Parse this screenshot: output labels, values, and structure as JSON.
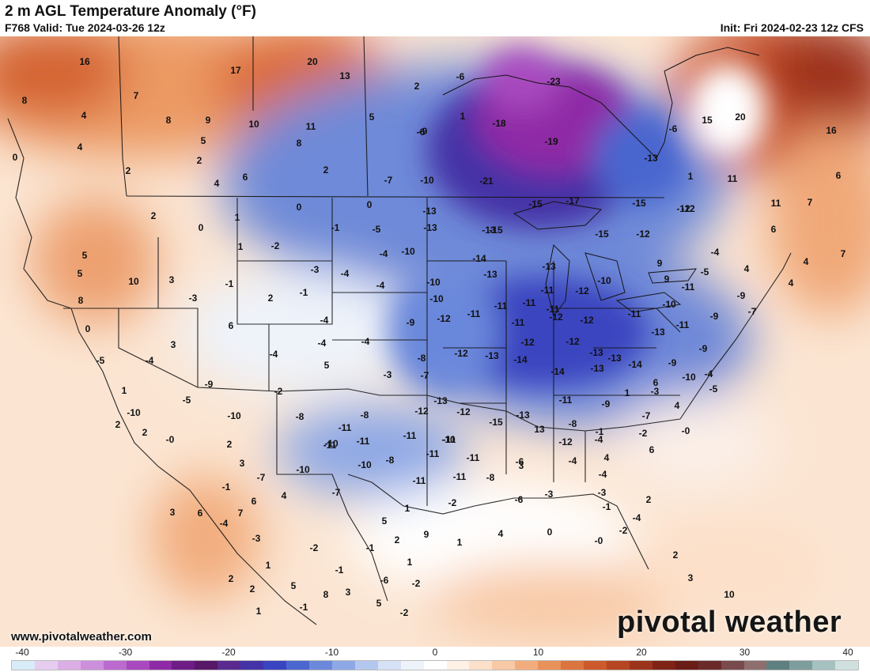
{
  "header": {
    "title": "2 m AGL Temperature Anomaly (°F)",
    "valid": "F768 Valid: Tue 2024-03-26 12z",
    "init": "Init: Fri 2024-02-23 12z CFS"
  },
  "footer": {
    "website": "www.pivotalweather.com",
    "brand": "pivotal weather"
  },
  "colorbar": {
    "min": -40,
    "max": 40,
    "ticks": [
      "-40",
      "-30",
      "-20",
      "-10",
      "0",
      "10",
      "20",
      "30",
      "40"
    ],
    "colors": [
      "#d8ecf8",
      "#e6cdf0",
      "#dcaee6",
      "#cc8fdc",
      "#bb6ad0",
      "#a948bf",
      "#8f2aa6",
      "#6e1c86",
      "#571869",
      "#5a2a8f",
      "#4433a6",
      "#3a44c0",
      "#4a66cf",
      "#6b88db",
      "#8ea8e5",
      "#b4c8ef",
      "#d6e1f6",
      "#eef3fa",
      "#ffffff",
      "#fff1e6",
      "#fde0c9",
      "#f8c9a6",
      "#f2ad7e",
      "#e9915a",
      "#dc7440",
      "#cc5a2c",
      "#b64522",
      "#9c331c",
      "#7f2317",
      "#6a1c17",
      "#6b2a2a",
      "#7a4b4e",
      "#8e6f6e",
      "#5f7f80",
      "#7e9e9d",
      "#a5c1c0",
      "#cfe0df"
    ]
  },
  "map_values": [
    {
      "v": "16"
    },
    {
      "v": "17"
    },
    {
      "v": "20"
    },
    {
      "v": "13"
    },
    {
      "v": "8"
    },
    {
      "v": "7"
    },
    {
      "v": "4"
    },
    {
      "v": "8"
    },
    {
      "v": "9"
    },
    {
      "v": "10"
    },
    {
      "v": "11"
    },
    {
      "v": "4"
    },
    {
      "v": "5"
    },
    {
      "v": "8"
    },
    {
      "v": "0"
    },
    {
      "v": "2"
    },
    {
      "v": "2"
    },
    {
      "v": "2"
    },
    {
      "v": "4"
    },
    {
      "v": "6"
    },
    {
      "v": "2"
    },
    {
      "v": "-6"
    },
    {
      "v": "1"
    },
    {
      "v": "5"
    },
    {
      "v": "-9"
    },
    {
      "v": "-6"
    },
    {
      "v": "-18"
    },
    {
      "v": "-19"
    },
    {
      "v": "-23"
    },
    {
      "v": "-7"
    },
    {
      "v": "-10"
    },
    {
      "v": "-21"
    },
    {
      "v": "-13"
    },
    {
      "v": "-17"
    },
    {
      "v": "-15"
    },
    {
      "v": "-15"
    },
    {
      "v": "-12"
    },
    {
      "v": "-6"
    },
    {
      "v": "-13"
    },
    {
      "v": "-15"
    },
    {
      "v": "1"
    },
    {
      "v": "11"
    },
    {
      "v": "15"
    },
    {
      "v": "20"
    },
    {
      "v": "16"
    },
    {
      "v": "11"
    },
    {
      "v": "7"
    },
    {
      "v": "6"
    },
    {
      "v": "6"
    },
    {
      "v": "4"
    },
    {
      "v": "4"
    },
    {
      "v": "7"
    },
    {
      "v": "4"
    },
    {
      "v": "-4"
    },
    {
      "v": "0"
    },
    {
      "v": "2"
    },
    {
      "v": "0"
    },
    {
      "v": "1"
    },
    {
      "v": "1"
    },
    {
      "v": "-2"
    },
    {
      "v": "0"
    },
    {
      "v": "-1"
    },
    {
      "v": "-5"
    },
    {
      "v": "-4"
    },
    {
      "v": "-13"
    },
    {
      "v": "-13"
    },
    {
      "v": "-15"
    },
    {
      "v": "-12"
    },
    {
      "v": "-12"
    },
    {
      "v": "9"
    },
    {
      "v": "5"
    },
    {
      "v": "5"
    },
    {
      "v": "10"
    },
    {
      "v": "3"
    },
    {
      "v": "-3"
    },
    {
      "v": "-1"
    },
    {
      "v": "2"
    },
    {
      "v": "-1"
    },
    {
      "v": "-3"
    },
    {
      "v": "-4"
    },
    {
      "v": "-10"
    },
    {
      "v": "-4"
    },
    {
      "v": "-10"
    },
    {
      "v": "-14"
    },
    {
      "v": "-13"
    },
    {
      "v": "-13"
    },
    {
      "v": "-11"
    },
    {
      "v": "-11"
    },
    {
      "v": "-12"
    },
    {
      "v": "-10"
    },
    {
      "v": "9"
    },
    {
      "v": "-11"
    },
    {
      "v": "-10"
    },
    {
      "v": "-5"
    },
    {
      "v": "-9"
    },
    {
      "v": "8"
    },
    {
      "v": "0"
    },
    {
      "v": "6"
    },
    {
      "v": "3"
    },
    {
      "v": "-4"
    },
    {
      "v": "-4"
    },
    {
      "v": "-4"
    },
    {
      "v": "-9"
    },
    {
      "v": "-10"
    },
    {
      "v": "-12"
    },
    {
      "v": "-11"
    },
    {
      "v": "-11"
    },
    {
      "v": "-11"
    },
    {
      "v": "-11"
    },
    {
      "v": "-12"
    },
    {
      "v": "-12"
    },
    {
      "v": "-11"
    },
    {
      "v": "-11"
    },
    {
      "v": "-13"
    },
    {
      "v": "-9"
    },
    {
      "v": "-7"
    },
    {
      "v": "-4"
    },
    {
      "v": "-1"
    },
    {
      "v": "3"
    },
    {
      "v": "-5"
    },
    {
      "v": "5"
    },
    {
      "v": "-4"
    },
    {
      "v": "-3"
    },
    {
      "v": "-8"
    },
    {
      "v": "-7"
    },
    {
      "v": "-12"
    },
    {
      "v": "-13"
    },
    {
      "v": "-14"
    },
    {
      "v": "-12"
    },
    {
      "v": "-12"
    },
    {
      "v": "-14"
    },
    {
      "v": "-13"
    },
    {
      "v": "-13"
    },
    {
      "v": "-14"
    },
    {
      "v": "-13"
    },
    {
      "v": "-9"
    },
    {
      "v": "-9"
    },
    {
      "v": "-10"
    },
    {
      "v": "-4"
    },
    {
      "v": "-3"
    },
    {
      "v": "1"
    },
    {
      "v": "-9"
    },
    {
      "v": "-5"
    },
    {
      "v": "-2"
    },
    {
      "v": "-8"
    },
    {
      "v": "-8"
    },
    {
      "v": "-11"
    },
    {
      "v": "-12"
    },
    {
      "v": "-13"
    },
    {
      "v": "-12"
    },
    {
      "v": "-15"
    },
    {
      "v": "-13"
    },
    {
      "v": "-11"
    },
    {
      "v": "-9"
    },
    {
      "v": "6"
    },
    {
      "v": "1"
    },
    {
      "v": "4"
    },
    {
      "v": "-5"
    },
    {
      "v": "-10"
    },
    {
      "v": "-10"
    },
    {
      "v": "-10"
    },
    {
      "v": "-11"
    },
    {
      "v": "-11"
    },
    {
      "v": "-10"
    },
    {
      "v": "-11"
    },
    {
      "v": "-11"
    },
    {
      "v": "-11"
    },
    {
      "v": "13"
    },
    {
      "v": "-8"
    },
    {
      "v": "-7"
    },
    {
      "v": "-2"
    },
    {
      "v": "-0"
    },
    {
      "v": "-11"
    },
    {
      "v": "-10"
    },
    {
      "v": "-8"
    },
    {
      "v": "-11"
    },
    {
      "v": "-11"
    },
    {
      "v": "-6"
    },
    {
      "v": "-12"
    },
    {
      "v": "-4"
    },
    {
      "v": "-4"
    },
    {
      "v": "4"
    },
    {
      "v": "2"
    },
    {
      "v": "2"
    },
    {
      "v": "-0"
    },
    {
      "v": "2"
    },
    {
      "v": "3"
    },
    {
      "v": "-7"
    },
    {
      "v": "-10"
    },
    {
      "v": "-7"
    },
    {
      "v": "-8"
    },
    {
      "v": "-6"
    },
    {
      "v": "-3"
    },
    {
      "v": "-4"
    },
    {
      "v": "-2"
    },
    {
      "v": "-3"
    },
    {
      "v": "-1"
    },
    {
      "v": "-1"
    },
    {
      "v": "7"
    },
    {
      "v": "6"
    },
    {
      "v": "3"
    },
    {
      "v": "6"
    },
    {
      "v": "1"
    },
    {
      "v": "-4"
    },
    {
      "v": "-2"
    },
    {
      "v": "2"
    },
    {
      "v": "-0"
    },
    {
      "v": "0"
    },
    {
      "v": "4"
    },
    {
      "v": "1"
    },
    {
      "v": "5"
    },
    {
      "v": "9"
    },
    {
      "v": "2"
    },
    {
      "v": "-1"
    },
    {
      "v": "-1"
    },
    {
      "v": "-2"
    },
    {
      "v": "4"
    },
    {
      "v": "6"
    },
    {
      "v": "-4"
    },
    {
      "v": "-3"
    },
    {
      "v": "1"
    },
    {
      "v": "5"
    },
    {
      "v": "2"
    },
    {
      "v": "2"
    },
    {
      "v": "3"
    },
    {
      "v": "8"
    },
    {
      "v": "5"
    },
    {
      "v": "-6"
    },
    {
      "v": "-2"
    },
    {
      "v": "-2"
    },
    {
      "v": "-1"
    },
    {
      "v": "1"
    },
    {
      "v": "2"
    },
    {
      "v": "3"
    },
    {
      "v": "10"
    },
    {
      "v": "1"
    }
  ]
}
